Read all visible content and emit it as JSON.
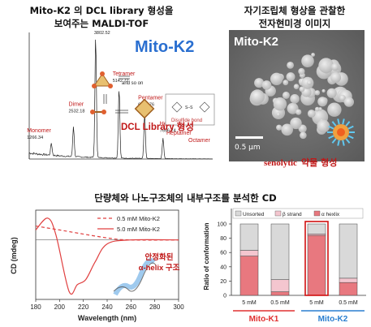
{
  "panel_a": {
    "caption_line1": "Mito-K2 의 DCL library 형성을",
    "caption_line2": "보여주는 MALDI-TOF",
    "brand": "Mito-K2",
    "ms_peaks": [
      {
        "name": "Monomer",
        "mz": "1266.34"
      },
      {
        "name": "Dimer",
        "mz": "2532.18"
      },
      {
        "name": "Trimer",
        "mz": "3802.52"
      },
      {
        "name": "Tetramer",
        "mz": "5142.72"
      },
      {
        "name": "Pentamer",
        "mz": "6605.76"
      },
      {
        "name": "Hexamer",
        "mz": "7656.74"
      },
      {
        "name": "Heptamer",
        "mz": ""
      },
      {
        "name": "Octamer",
        "mz": ""
      }
    ],
    "and_so_on": "and so on",
    "disulfide_label": "Disulfide bond",
    "dcl_banner": "DCL Library 형성"
  },
  "panel_b": {
    "caption_line1": "자기조립체 형상을 관찰한",
    "caption_line2": "전자현미경 이미지",
    "title": "Mito-K2",
    "scale_bar": "0.5 μm",
    "banner_en": "senolytic",
    "banner_ko": "약물 형성"
  },
  "panel_c": {
    "caption": "단량체와 나노구조체의 내부구조를 분석한 CD",
    "legend": [
      {
        "label": "0.5 mM  Mito-K2",
        "style": "dashed",
        "color": "#e04040"
      },
      {
        "label": "5.0 mM  Mito-K2",
        "style": "solid",
        "color": "#e04040"
      }
    ],
    "ylabel": "CD (mdeg)",
    "xlabel": "Wavelength (nm)",
    "xticks": [
      "180",
      "200",
      "220",
      "240",
      "260",
      "280",
      "300"
    ],
    "annotation_line1": "안정화된",
    "annotation_line2": "α-helix 구조"
  },
  "panel_d": {
    "ylabel": "Ratio of conformation",
    "yticks": [
      "0",
      "20",
      "40",
      "60",
      "80",
      "100"
    ],
    "legend": [
      "Unsorted",
      "β strand",
      "α hexlix"
    ],
    "colors": {
      "unsorted": "#d9d9d9",
      "beta": "#f4c6cf",
      "alpha": "#e8787f"
    },
    "bar_labels": [
      "5 mM",
      "0.5 mM",
      "5 mM",
      "0.5 mM"
    ],
    "group_labels": [
      {
        "label": "Mito-K1",
        "color": "#e03030"
      },
      {
        "label": "Mito-K2",
        "color": "#2a7fd0"
      }
    ]
  },
  "chart_data": [
    {
      "type": "line",
      "title": "",
      "xlabel": "m/z",
      "ylabel": "",
      "peaks": [
        {
          "label": "Monomer",
          "x": 1266.34
        },
        {
          "label": "Dimer",
          "x": 2532.18
        },
        {
          "label": "Trimer",
          "x": 3802.52
        },
        {
          "label": "Tetramer",
          "x": 5142.72
        },
        {
          "label": "Pentamer",
          "x": 6605.76
        },
        {
          "label": "Hexamer",
          "x": 7656.74
        }
      ]
    },
    {
      "type": "line",
      "xlabel": "Wavelength (nm)",
      "ylabel": "CD (mdeg)",
      "xlim": [
        180,
        300
      ],
      "series": [
        {
          "name": "0.5 mM  Mito-K2",
          "x": [
            180,
            200,
            240,
            260,
            300
          ],
          "y": [
            14,
            10,
            2,
            0,
            0
          ]
        },
        {
          "name": "5.0 mM  Mito-K2",
          "x": [
            180,
            190,
            197,
            208,
            215,
            222,
            230,
            240,
            260,
            300
          ],
          "y": [
            10,
            22,
            5,
            -52,
            -45,
            -40,
            -22,
            -4,
            0,
            0
          ]
        }
      ]
    },
    {
      "type": "bar",
      "ylabel": "Ratio of conformation",
      "ylim": [
        0,
        100
      ],
      "categories": [
        "5 mM",
        "0.5 mM",
        "5 mM",
        "0.5 mM"
      ],
      "groups": [
        "Mito-K1",
        "Mito-K1",
        "Mito-K2",
        "Mito-K2"
      ],
      "series": [
        {
          "name": "α hexlix",
          "values": [
            55,
            5,
            84,
            18
          ]
        },
        {
          "name": "β strand",
          "values": [
            8,
            17,
            2,
            6
          ]
        },
        {
          "name": "Unsorted",
          "values": [
            37,
            78,
            14,
            76
          ]
        }
      ]
    }
  ]
}
